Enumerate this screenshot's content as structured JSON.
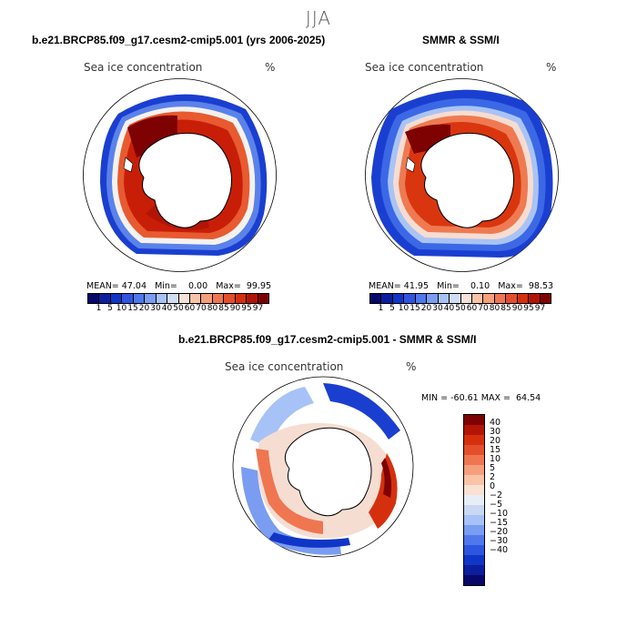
{
  "season": "JJA",
  "panels": {
    "model": {
      "title": "b.e21.BRCP85.f09_g17.cesm2-cmip5.001 (yrs 2006-2025)",
      "label": "Sea ice concentration",
      "unit": "%",
      "stats": {
        "mean_label": "MEAN=",
        "mean": "47.04",
        "min_label": "Min=",
        "min": "0.00",
        "max_label": "Max=",
        "max": "99.95"
      }
    },
    "obs": {
      "title": "SMMR & SSM/I",
      "label": "Sea ice concentration",
      "unit": "%",
      "stats": {
        "mean_label": "MEAN=",
        "mean": "41.95",
        "min_label": "Min=",
        "min": "0.10",
        "max_label": "Max=",
        "max": "98.53"
      }
    },
    "diff": {
      "title": "b.e21.BRCP85.f09_g17.cesm2-cmip5.001 - SMMR & SSM/I",
      "label": "Sea ice concentration",
      "unit": "%",
      "minmax": "MIN = -60.61 MAX =  64.54"
    }
  },
  "colorbar_conc": {
    "colors": [
      "#08086b",
      "#0b1f9e",
      "#1036c8",
      "#2f55e0",
      "#4f78ec",
      "#7a9df2",
      "#a7c2f6",
      "#d0ddf4",
      "#f6e2d8",
      "#f9c3a8",
      "#f59f7c",
      "#ef7650",
      "#e44f2b",
      "#d5300e",
      "#b21505",
      "#7e0202"
    ],
    "ticks": [
      "1",
      "5",
      "10",
      "15",
      "20",
      "30",
      "40",
      "50",
      "60",
      "70",
      "80",
      "85",
      "90",
      "95",
      "97"
    ]
  },
  "colorbar_diff": {
    "colors": [
      "#7e0202",
      "#b21505",
      "#d5300e",
      "#e44f2b",
      "#ef7650",
      "#f59f7c",
      "#f9c3a8",
      "#fbe1d4",
      "#e8eef8",
      "#c9d8f3",
      "#a7c2f6",
      "#7a9df2",
      "#4f78ec",
      "#2f55e0",
      "#1036c8",
      "#0b1f9e",
      "#08086b"
    ],
    "ticks": [
      "40",
      "30",
      "20",
      "15",
      "10",
      "5",
      "2",
      "0",
      "−2",
      "−5",
      "−10",
      "−15",
      "−20",
      "−30",
      "−40"
    ]
  }
}
